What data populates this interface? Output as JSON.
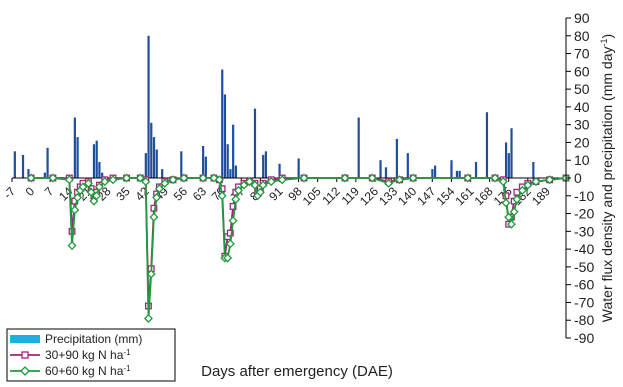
{
  "chart_data": {
    "type": "bar+line",
    "xlabel": "Days after emergency (DAE)",
    "ylabel": "Water flux density and precipitation (mm day",
    "ylabel_superscript": "-1",
    "ylabel_close": ")",
    "xlim": [
      -7,
      196
    ],
    "ylim": [
      -90,
      90
    ],
    "x_ticks": [
      -7,
      0,
      7,
      14,
      21,
      28,
      35,
      42,
      49,
      56,
      63,
      70,
      77,
      84,
      91,
      98,
      105,
      112,
      119,
      126,
      133,
      140,
      147,
      154,
      161,
      168,
      175,
      182,
      189
    ],
    "y_ticks": [
      90,
      80,
      70,
      60,
      50,
      40,
      30,
      20,
      10,
      0,
      -10,
      -20,
      -30,
      -40,
      -50,
      -60,
      -70,
      -80,
      -90
    ],
    "grid": false,
    "legend_position": "bottom-left",
    "legend": [
      {
        "label": "Precipitation (mm)",
        "sup": "",
        "marker": "bar"
      },
      {
        "label": "30+90 kg N ha",
        "sup": "-1",
        "marker": "square"
      },
      {
        "label": "60+60 kg N ha",
        "sup": "-1",
        "marker": "diamond"
      }
    ],
    "colors": {
      "precipitation": "#1f4e9c",
      "precip_legend": "#1ab0e0",
      "series1": "#a0257a",
      "series2": "#1f9a3c"
    },
    "precipitation": {
      "name": "Precipitation (mm)",
      "points": [
        [
          -6,
          15
        ],
        [
          -3,
          13
        ],
        [
          -1,
          5
        ],
        [
          0,
          2
        ],
        [
          5,
          3
        ],
        [
          6,
          17
        ],
        [
          16,
          34
        ],
        [
          17,
          23
        ],
        [
          23,
          19
        ],
        [
          24,
          21
        ],
        [
          25,
          9
        ],
        [
          26,
          3
        ],
        [
          42,
          14
        ],
        [
          43,
          80
        ],
        [
          44,
          31
        ],
        [
          45,
          23
        ],
        [
          46,
          16
        ],
        [
          48,
          5
        ],
        [
          55,
          15
        ],
        [
          63,
          18
        ],
        [
          64,
          12
        ],
        [
          70,
          61
        ],
        [
          71,
          47
        ],
        [
          72,
          19
        ],
        [
          73,
          5
        ],
        [
          74,
          30
        ],
        [
          75,
          7
        ],
        [
          82,
          39
        ],
        [
          85,
          13
        ],
        [
          86,
          15
        ],
        [
          91,
          8
        ],
        [
          98,
          11
        ],
        [
          120,
          34
        ],
        [
          128,
          10
        ],
        [
          130,
          6
        ],
        [
          134,
          22
        ],
        [
          138,
          14
        ],
        [
          147,
          5
        ],
        [
          148,
          7
        ],
        [
          154,
          10
        ],
        [
          156,
          4
        ],
        [
          157,
          4
        ],
        [
          163,
          9
        ],
        [
          167,
          37
        ],
        [
          174,
          20
        ],
        [
          175,
          14
        ],
        [
          176,
          28
        ],
        [
          184,
          9
        ]
      ]
    },
    "series": [
      {
        "name": "30+90 kg N ha-1",
        "marker": "square",
        "points": [
          [
            0,
            0
          ],
          [
            8,
            0
          ],
          [
            14,
            0
          ],
          [
            15,
            -30
          ],
          [
            16,
            -13
          ],
          [
            17,
            -8
          ],
          [
            18,
            -5
          ],
          [
            19,
            -3
          ],
          [
            21,
            -2
          ],
          [
            22,
            -6
          ],
          [
            23,
            -10
          ],
          [
            24,
            -8
          ],
          [
            25,
            -4
          ],
          [
            27,
            -1
          ],
          [
            30,
            0
          ],
          [
            35,
            0
          ],
          [
            40,
            0
          ],
          [
            42,
            -1
          ],
          [
            43,
            -72
          ],
          [
            44,
            -51
          ],
          [
            45,
            -17
          ],
          [
            46,
            -9
          ],
          [
            47,
            -5
          ],
          [
            49,
            -2
          ],
          [
            52,
            -1
          ],
          [
            56,
            0
          ],
          [
            63,
            0
          ],
          [
            67,
            0
          ],
          [
            69,
            -1
          ],
          [
            70,
            -6
          ],
          [
            71,
            -44
          ],
          [
            72,
            -33
          ],
          [
            73,
            -31
          ],
          [
            74,
            -16
          ],
          [
            75,
            -8
          ],
          [
            76,
            -5
          ],
          [
            78,
            -3
          ],
          [
            80,
            -2
          ],
          [
            82,
            -3
          ],
          [
            83,
            -8
          ],
          [
            84,
            -6
          ],
          [
            85,
            -3
          ],
          [
            88,
            -1
          ],
          [
            92,
            0
          ],
          [
            100,
            0
          ],
          [
            115,
            0
          ],
          [
            125,
            0
          ],
          [
            131,
            -2
          ],
          [
            135,
            -1
          ],
          [
            140,
            0
          ],
          [
            160,
            0
          ],
          [
            170,
            0
          ],
          [
            173,
            -1
          ],
          [
            174,
            -10
          ],
          [
            175,
            -26
          ],
          [
            176,
            -22
          ],
          [
            177,
            -13
          ],
          [
            178,
            -8
          ],
          [
            180,
            -5
          ],
          [
            182,
            -3
          ],
          [
            185,
            -2
          ],
          [
            190,
            -1
          ],
          [
            196,
            0
          ]
        ]
      },
      {
        "name": "60+60 kg N ha-1",
        "marker": "diamond",
        "points": [
          [
            0,
            0
          ],
          [
            8,
            0
          ],
          [
            14,
            -1
          ],
          [
            15,
            -38
          ],
          [
            16,
            -18
          ],
          [
            17,
            -11
          ],
          [
            18,
            -7
          ],
          [
            19,
            -5
          ],
          [
            21,
            -3
          ],
          [
            22,
            -8
          ],
          [
            23,
            -13
          ],
          [
            24,
            -10
          ],
          [
            25,
            -5
          ],
          [
            27,
            -2
          ],
          [
            30,
            -1
          ],
          [
            35,
            0
          ],
          [
            40,
            0
          ],
          [
            42,
            -2
          ],
          [
            43,
            -79
          ],
          [
            44,
            -54
          ],
          [
            45,
            -22
          ],
          [
            46,
            -11
          ],
          [
            47,
            -6
          ],
          [
            49,
            -3
          ],
          [
            52,
            -1
          ],
          [
            56,
            0
          ],
          [
            63,
            0
          ],
          [
            67,
            0
          ],
          [
            69,
            -1
          ],
          [
            70,
            -10
          ],
          [
            71,
            -45
          ],
          [
            72,
            -45
          ],
          [
            73,
            -37
          ],
          [
            74,
            -24
          ],
          [
            75,
            -12
          ],
          [
            76,
            -7
          ],
          [
            78,
            -4
          ],
          [
            80,
            -2
          ],
          [
            82,
            -4
          ],
          [
            83,
            -10
          ],
          [
            84,
            -8
          ],
          [
            85,
            -4
          ],
          [
            88,
            -2
          ],
          [
            92,
            -1
          ],
          [
            100,
            0
          ],
          [
            115,
            0
          ],
          [
            125,
            0
          ],
          [
            131,
            -3
          ],
          [
            135,
            -1
          ],
          [
            140,
            0
          ],
          [
            160,
            0
          ],
          [
            170,
            0
          ],
          [
            173,
            -2
          ],
          [
            174,
            -14
          ],
          [
            175,
            -22
          ],
          [
            176,
            -26
          ],
          [
            177,
            -19
          ],
          [
            178,
            -12
          ],
          [
            180,
            -7
          ],
          [
            182,
            -4
          ],
          [
            185,
            -2
          ],
          [
            190,
            -1
          ],
          [
            196,
            0
          ]
        ]
      }
    ]
  }
}
